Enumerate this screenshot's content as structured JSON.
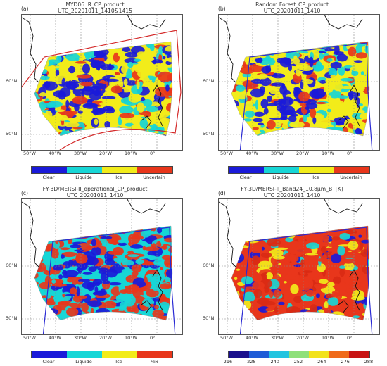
{
  "panels": [
    {
      "tag": "(a)",
      "title1": "MYD06 IR_CP_product",
      "title2": "UTC_20201011_1410&1415",
      "lat_labels": [
        "60°N",
        "50°N"
      ],
      "lon_labels": [
        "50°W",
        "40°W",
        "30°W",
        "20°W",
        "10°W",
        "0°"
      ],
      "legend": [
        "Clear",
        "Liquide",
        "Ice",
        "Uncertain"
      ],
      "legend_colors": [
        "#1a1ad9",
        "#17d6d6",
        "#f2ec1a",
        "#e8361b"
      ],
      "outline_color": "#d42a2a",
      "palette": [
        "#1a1ad9",
        "#17d6d6",
        "#f2ec1a",
        "#e8361b"
      ]
    },
    {
      "tag": "(b)",
      "title1": "Random Forest_CP_product",
      "title2": "UTC_20201011_1410",
      "lat_labels": [
        "60°N",
        "50°N"
      ],
      "lon_labels": [
        "50°W",
        "40°W",
        "30°W",
        "20°W",
        "10°W",
        "0°"
      ],
      "legend": [
        "Clear",
        "Liquide",
        "Ice",
        "Uncertain"
      ],
      "legend_colors": [
        "#1a1ad9",
        "#17d6d6",
        "#f2ec1a",
        "#e8361b"
      ],
      "outline_color": "#2a2ad4",
      "palette": [
        "#1a1ad9",
        "#17d6d6",
        "#f2ec1a",
        "#e8361b"
      ]
    },
    {
      "tag": "(c)",
      "title1": "FY-3D/MERSI-II_operational_CP_product",
      "title2": "UTC_20201011_1410",
      "lat_labels": [
        "60°N",
        "50°N"
      ],
      "lon_labels": [
        "50°W",
        "40°W",
        "30°W",
        "20°W",
        "10°W",
        "0°"
      ],
      "legend": [
        "Clear",
        "Liquide",
        "Ice",
        "Mix"
      ],
      "legend_colors": [
        "#1a1ad9",
        "#17d6d6",
        "#f2ec1a",
        "#e8361b"
      ],
      "outline_color": "#2a2ad4",
      "palette": [
        "#1a1ad9",
        "#17d6d6",
        "#f2ec1a",
        "#e8361b"
      ]
    },
    {
      "tag": "(d)",
      "title1": "FY-3D/MERSI-II_Band24_10.8μm_BT[K]",
      "title2": "UTC_20201011_1410",
      "lat_labels": [
        "60°N",
        "50°N"
      ],
      "lon_labels": [
        "50°W",
        "40°W",
        "30°W",
        "20°W",
        "10°W",
        "0°"
      ],
      "legend": [
        "216",
        "228",
        "240",
        "252",
        "264",
        "276",
        "288"
      ],
      "legend_colors": [
        "#1a0f8c",
        "#1f5cd6",
        "#22c4e0",
        "#8ee07a",
        "#f2e21c",
        "#f06a1a",
        "#c81414"
      ],
      "outline_color": "#2a2ad4",
      "palette": [
        "#e8361b",
        "#d92a14",
        "#f2ec1a",
        "#17d6d6",
        "#1a1ad9"
      ]
    }
  ]
}
